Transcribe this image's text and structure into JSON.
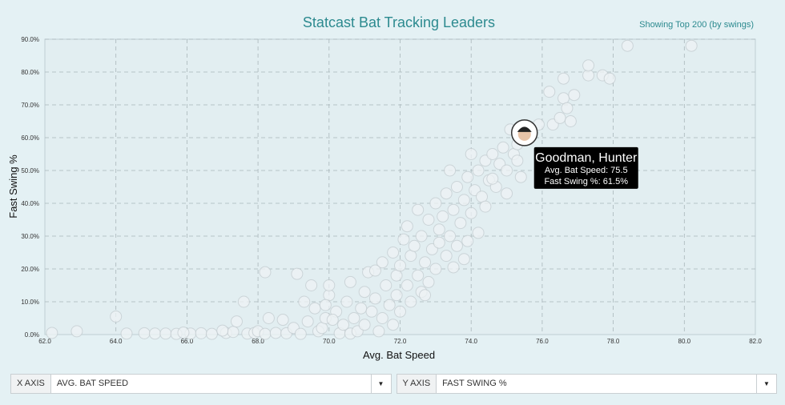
{
  "header": {
    "title": "Statcast Bat Tracking Leaders",
    "subtitle": "Showing Top 200 (by swings)"
  },
  "chart_data": {
    "type": "scatter",
    "xlabel": "Avg. Bat Speed",
    "ylabel": "Fast Swing %",
    "xlim": [
      62,
      82
    ],
    "ylim": [
      0,
      90
    ],
    "x_ticks": [
      "62.0",
      "64.0",
      "66.0",
      "68.0",
      "70.0",
      "72.0",
      "74.0",
      "76.0",
      "78.0",
      "80.0",
      "82.0"
    ],
    "y_ticks": [
      "0.0%",
      "10.0%",
      "20.0%",
      "30.0%",
      "40.0%",
      "50.0%",
      "60.0%",
      "70.0%",
      "80.0%",
      "90.0%"
    ],
    "grid": true,
    "points": [
      [
        62.2,
        0.5
      ],
      [
        64.0,
        5.5
      ],
      [
        64.3,
        0.3
      ],
      [
        64.8,
        0.4
      ],
      [
        65.1,
        0.3
      ],
      [
        65.4,
        0.3
      ],
      [
        65.7,
        0.2
      ],
      [
        66.1,
        0.3
      ],
      [
        66.4,
        0.4
      ],
      [
        66.7,
        0.2
      ],
      [
        67.1,
        0.5
      ],
      [
        67.3,
        0.8
      ],
      [
        67.4,
        4.0
      ],
      [
        67.6,
        10.0
      ],
      [
        67.7,
        0.3
      ],
      [
        67.9,
        0.5
      ],
      [
        68.0,
        1.0
      ],
      [
        68.2,
        0.2
      ],
      [
        68.2,
        19.0
      ],
      [
        68.3,
        5.0
      ],
      [
        68.5,
        0.5
      ],
      [
        68.7,
        4.5
      ],
      [
        68.8,
        0.4
      ],
      [
        69.0,
        2.0
      ],
      [
        69.1,
        18.5
      ],
      [
        69.2,
        0.2
      ],
      [
        69.3,
        10.0
      ],
      [
        69.4,
        4.0
      ],
      [
        69.5,
        15.0
      ],
      [
        69.6,
        8.0
      ],
      [
        69.7,
        1.0
      ],
      [
        69.8,
        2.0
      ],
      [
        69.9,
        5.0
      ],
      [
        70.0,
        12.0
      ],
      [
        70.0,
        15.0
      ],
      [
        70.2,
        7.0
      ],
      [
        70.3,
        0.4
      ],
      [
        70.4,
        3.0
      ],
      [
        70.5,
        10.0
      ],
      [
        70.6,
        0.3
      ],
      [
        70.6,
        16.0
      ],
      [
        70.7,
        5.0
      ],
      [
        70.8,
        1.0
      ],
      [
        70.9,
        8.0
      ],
      [
        71.0,
        13.0
      ],
      [
        71.0,
        3.0
      ],
      [
        71.1,
        19.0
      ],
      [
        71.2,
        7.0
      ],
      [
        71.3,
        11.0
      ],
      [
        71.4,
        1.0
      ],
      [
        71.5,
        5.0
      ],
      [
        71.5,
        22.0
      ],
      [
        71.6,
        15.0
      ],
      [
        71.7,
        9.0
      ],
      [
        71.8,
        3.0
      ],
      [
        71.8,
        25.0
      ],
      [
        71.9,
        12.0
      ],
      [
        71.9,
        18.0
      ],
      [
        72.0,
        7.0
      ],
      [
        72.0,
        21.0
      ],
      [
        72.1,
        29.0
      ],
      [
        72.2,
        15.0
      ],
      [
        72.2,
        33.0
      ],
      [
        72.3,
        10.0
      ],
      [
        72.3,
        24.0
      ],
      [
        72.4,
        27.0
      ],
      [
        72.5,
        18.0
      ],
      [
        72.5,
        38.0
      ],
      [
        72.6,
        13.0
      ],
      [
        72.6,
        30.0
      ],
      [
        72.7,
        22.0
      ],
      [
        72.8,
        35.0
      ],
      [
        72.8,
        16.0
      ],
      [
        72.9,
        26.0
      ],
      [
        73.0,
        40.0
      ],
      [
        73.0,
        20.0
      ],
      [
        73.1,
        32.0
      ],
      [
        73.1,
        28.0
      ],
      [
        73.2,
        36.0
      ],
      [
        73.3,
        24.0
      ],
      [
        73.3,
        43.0
      ],
      [
        73.4,
        30.0
      ],
      [
        73.4,
        50.0
      ],
      [
        73.5,
        38.0
      ],
      [
        73.6,
        27.0
      ],
      [
        73.6,
        45.0
      ],
      [
        73.7,
        34.0
      ],
      [
        73.8,
        41.0
      ],
      [
        73.8,
        23.0
      ],
      [
        73.9,
        48.0
      ],
      [
        74.0,
        37.0
      ],
      [
        74.0,
        55.0
      ],
      [
        74.1,
        44.0
      ],
      [
        74.2,
        31.0
      ],
      [
        74.2,
        50.0
      ],
      [
        74.3,
        42.0
      ],
      [
        74.4,
        53.0
      ],
      [
        74.4,
        39.0
      ],
      [
        74.5,
        47.0
      ],
      [
        74.6,
        55.0
      ],
      [
        74.7,
        45.0
      ],
      [
        74.8,
        52.0
      ],
      [
        74.9,
        57.0
      ],
      [
        75.0,
        43.0
      ],
      [
        75.0,
        50.0
      ],
      [
        75.1,
        62.5
      ],
      [
        75.2,
        55.0
      ],
      [
        75.3,
        58.0
      ],
      [
        75.4,
        48.0
      ],
      [
        75.5,
        61.5
      ],
      [
        75.7,
        61.0
      ],
      [
        75.9,
        64.0
      ],
      [
        76.2,
        74.0
      ],
      [
        76.3,
        64.0
      ],
      [
        76.5,
        66.0
      ],
      [
        76.6,
        72.0
      ],
      [
        76.6,
        78.0
      ],
      [
        76.7,
        69.0
      ],
      [
        76.8,
        65.0
      ],
      [
        76.9,
        73.0
      ],
      [
        77.3,
        79.0
      ],
      [
        77.3,
        82.0
      ],
      [
        77.7,
        79.0
      ],
      [
        77.9,
        78.0
      ],
      [
        78.4,
        88.0
      ],
      [
        80.2,
        88.0
      ],
      [
        62.9,
        1.0
      ],
      [
        65.9,
        0.6
      ],
      [
        67.0,
        1.2
      ],
      [
        69.9,
        9.0
      ],
      [
        70.1,
        4.5
      ],
      [
        71.3,
        19.5
      ],
      [
        72.7,
        12.0
      ],
      [
        73.5,
        20.5
      ],
      [
        73.9,
        28.5
      ],
      [
        74.6,
        47.5
      ],
      [
        75.3,
        53.0
      ]
    ],
    "highlight": {
      "name": "Goodman, Hunter",
      "x": 75.5,
      "y": 61.5,
      "line1": "Avg. Bat Speed: 75.5",
      "line2": "Fast Swing %: 61.5%"
    }
  },
  "controls": {
    "x_axis": {
      "label": "X AXIS",
      "value": "AVG. BAT SPEED",
      "caret_icon": "caret-down-icon"
    },
    "y_axis": {
      "label": "Y AXIS",
      "value": "FAST SWING %",
      "caret_icon": "caret-down-icon"
    }
  },
  "colors": {
    "accent": "#2c8a8f",
    "background": "#e4f1f4",
    "tooltip": "#000000"
  }
}
